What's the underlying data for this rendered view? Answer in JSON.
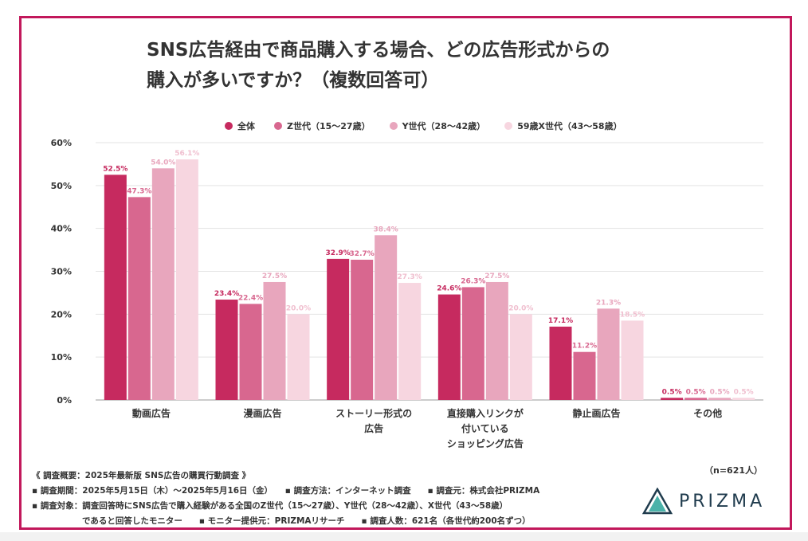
{
  "title_lines": [
    "SNS広告経由で商品購入する場合、どの広告形式からの",
    "購入が多いですか？（複数回答可）"
  ],
  "chart_data": {
    "type": "bar",
    "categories": [
      [
        "動画広告"
      ],
      [
        "漫画広告"
      ],
      [
        "ストーリー形式の",
        "広告"
      ],
      [
        "直接購入リンクが",
        "付いている",
        "ショッピング広告"
      ],
      [
        "静止画広告"
      ],
      [
        "その他"
      ]
    ],
    "series": [
      {
        "name": "全体",
        "color": "#c62a5f",
        "values": [
          52.5,
          23.4,
          32.9,
          24.6,
          17.1,
          0.5
        ]
      },
      {
        "name": "Z世代（15〜27歳）",
        "color": "#d8678f",
        "values": [
          47.3,
          22.4,
          32.7,
          26.3,
          11.2,
          0.5
        ]
      },
      {
        "name": "Y世代（28〜42歳）",
        "color": "#e8a6bd",
        "values": [
          54.0,
          27.5,
          38.4,
          27.5,
          21.3,
          0.5
        ]
      },
      {
        "name": "59歳X世代（43〜58歳）",
        "color": "#f7d6e0",
        "values": [
          56.1,
          20.0,
          27.3,
          20.0,
          18.5,
          0.5
        ]
      }
    ],
    "label_colors": [
      "#c62a5f",
      "#d8678f",
      "#e8a6bd",
      "#f0bfcf"
    ],
    "yticks": [
      "0%",
      "10%",
      "20%",
      "30%",
      "40%",
      "50%",
      "60%"
    ],
    "ylim": [
      0,
      60
    ],
    "grid": true,
    "legend_position": "top"
  },
  "notes": [
    "《 調査概要：2025年最新版 SNS広告の購買行動調査 》",
    "▪ 調査期間：2025年5月15日（木）〜2025年5月16日（金）　　▪ 調査方法：インターネット調査　　▪ 調査元：株式会社PRIZMA",
    "▪ 調査対象：調査回答時にSNS広告で購入経験がある全国のZ世代（15〜27歳）、Y世代（28〜42歳）、X世代（43〜58歳）",
    "　　　　　　であると回答したモニター　　▪ モニター提供元：PRIZMAリサーチ　　▪ 調査人数：621名（各世代約200名ずつ）"
  ],
  "n_label": "（n=621人）",
  "logo_text": "PRIZMA",
  "logo_colors": {
    "dark": "#1f3b4d",
    "teal": "#2aa59a"
  }
}
